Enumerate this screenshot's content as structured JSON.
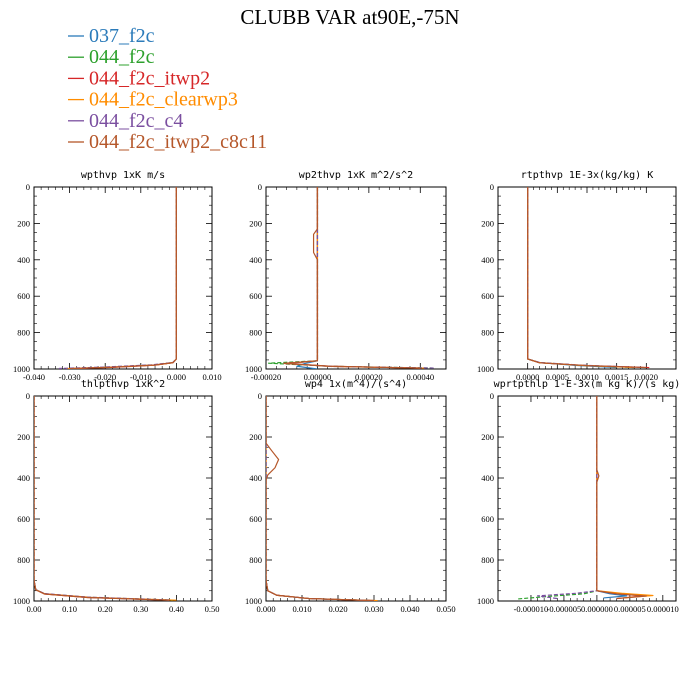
{
  "page": {
    "title": "CLUBB VAR at90E,-75N"
  },
  "legend": [
    {
      "label": "037_f2c",
      "color": "#2b7bba"
    },
    {
      "label": "044_f2c",
      "color": "#2ca02c"
    },
    {
      "label": "044_f2c_itwp2",
      "color": "#d62728"
    },
    {
      "label": "044_f2c_clearwp3",
      "color": "#ff8c00"
    },
    {
      "label": "044_f2c_c4",
      "color": "#7b4fa0"
    },
    {
      "label": "044_f2c_itwp2_c8c11",
      "color": "#b5572a"
    }
  ],
  "chart_data": [
    {
      "type": "line",
      "title": "wpthvp   1xK m/s",
      "xlim": [
        -0.04,
        0.01
      ],
      "ylim": [
        0,
        1000
      ],
      "y_inverted": true,
      "xticks": [
        -0.04,
        -0.03,
        -0.02,
        -0.01,
        0.0,
        0.01
      ],
      "xtick_labels": [
        "-0.040",
        "-0.030",
        "-0.020",
        "-0.010",
        "0.000",
        "0.010"
      ],
      "yticks": [
        0,
        200,
        400,
        600,
        800,
        1000
      ],
      "ytick_labels": [
        "0",
        "200",
        "400",
        "600",
        "800",
        "1000"
      ],
      "series": [
        {
          "name": "037_f2c",
          "color": "#2b7bba",
          "dashed": false,
          "x": [
            0,
            0,
            0,
            -0.001,
            -0.006,
            -0.018,
            -0.03
          ],
          "y": [
            0,
            900,
            945,
            965,
            978,
            990,
            998
          ]
        },
        {
          "name": "044_f2c",
          "color": "#2ca02c",
          "dashed": true,
          "x": [
            0,
            0,
            0,
            -0.001,
            -0.006,
            -0.018,
            -0.031
          ],
          "y": [
            0,
            900,
            945,
            965,
            978,
            990,
            998
          ]
        },
        {
          "name": "044_f2c_itwp2",
          "color": "#d62728",
          "dashed": false,
          "x": [
            0,
            0,
            0,
            -0.001,
            -0.006,
            -0.018,
            -0.03
          ],
          "y": [
            0,
            900,
            945,
            966,
            979,
            991,
            998
          ]
        },
        {
          "name": "044_f2c_clearwp3",
          "color": "#ff8c00",
          "dashed": false,
          "x": [
            0,
            0,
            0,
            -0.001,
            -0.006,
            -0.019,
            -0.031
          ],
          "y": [
            0,
            900,
            945,
            965,
            978,
            990,
            998
          ]
        },
        {
          "name": "044_f2c_c4",
          "color": "#7b4fa0",
          "dashed": true,
          "x": [
            0,
            0,
            0,
            -0.001,
            -0.007,
            -0.02,
            -0.033
          ],
          "y": [
            0,
            900,
            945,
            964,
            977,
            989,
            997
          ]
        },
        {
          "name": "044_f2c_itwp2_c8c11",
          "color": "#b5572a",
          "dashed": false,
          "x": [
            0,
            0,
            0,
            -0.001,
            -0.006,
            -0.018,
            -0.03
          ],
          "y": [
            0,
            900,
            945,
            965,
            978,
            990,
            998
          ]
        }
      ]
    },
    {
      "type": "line",
      "title": "wp2thvp   1xK m^2/s^2",
      "xlim": [
        -0.0002,
        0.0005
      ],
      "ylim": [
        0,
        1000
      ],
      "y_inverted": true,
      "xticks": [
        -0.0002,
        0,
        0.0002,
        0.0004
      ],
      "xtick_labels": [
        "-0.00020",
        "0.00000",
        "0.00020",
        "0.00040"
      ],
      "yticks": [
        0,
        200,
        400,
        600,
        800,
        1000
      ],
      "ytick_labels": [
        "0",
        "200",
        "400",
        "600",
        "800",
        "1000"
      ],
      "series": [
        {
          "name": "037_f2c",
          "color": "#2b7bba",
          "dashed": false,
          "x": [
            0,
            0,
            0,
            -5e-05,
            -8e-05,
            0
          ],
          "y": [
            0,
            900,
            955,
            970,
            985,
            1000
          ]
        },
        {
          "name": "044_f2c",
          "color": "#2ca02c",
          "dashed": true,
          "x": [
            0,
            0,
            0,
            -0.00019,
            5e-05,
            0.00045
          ],
          "y": [
            0,
            900,
            955,
            968,
            985,
            995
          ]
        },
        {
          "name": "044_f2c_itwp2",
          "color": "#d62728",
          "dashed": false,
          "x": [
            0,
            0,
            0,
            -0.00013,
            5e-05,
            0.0004
          ],
          "y": [
            0,
            900,
            955,
            969,
            985,
            995
          ]
        },
        {
          "name": "044_f2c_clearwp3",
          "color": "#ff8c00",
          "dashed": false,
          "x": [
            0,
            0,
            0,
            -0.00012,
            5e-05,
            0.00042
          ],
          "y": [
            0,
            900,
            955,
            970,
            986,
            995
          ]
        },
        {
          "name": "044_f2c_c4",
          "color": "#7b4fa0",
          "dashed": true,
          "x": [
            0,
            0,
            0,
            -0.00012,
            5e-05,
            0.00046
          ],
          "y": [
            0,
            900,
            955,
            970,
            986,
            995
          ]
        },
        {
          "name": "044_f2c_itwp2_c8c11",
          "color": "#b5572a",
          "dashed": false,
          "x": [
            0,
            0,
            -1.5e-05,
            -1.5e-05,
            0,
            0,
            0,
            -0.00013,
            5e-05,
            0.0004
          ],
          "y": [
            0,
            230,
            260,
            360,
            400,
            430,
            955,
            969,
            985,
            995
          ]
        }
      ]
    },
    {
      "type": "line",
      "title": "rtpthvp   1E-3x(kg/kg) K",
      "xlim": [
        -0.0005,
        0.0025
      ],
      "ylim": [
        0,
        1000
      ],
      "y_inverted": true,
      "xticks": [
        0,
        0.0005,
        0.001,
        0.0015,
        0.002
      ],
      "xtick_labels": [
        "0.0000",
        "0.0005",
        "0.0010",
        "0.0015",
        "0.0020"
      ],
      "yticks": [
        0,
        200,
        400,
        600,
        800,
        1000
      ],
      "ytick_labels": [
        "0",
        "200",
        "400",
        "600",
        "800",
        "1000"
      ],
      "series": [
        {
          "name": "037_f2c",
          "color": "#2b7bba",
          "dashed": false,
          "x": [
            0,
            0,
            0,
            0.0002,
            0.0008,
            0.0015
          ],
          "y": [
            0,
            900,
            945,
            965,
            980,
            992
          ]
        },
        {
          "name": "044_f2c",
          "color": "#2ca02c",
          "dashed": true,
          "x": [
            0,
            0,
            0,
            0.0002,
            0.0009,
            0.0018
          ],
          "y": [
            0,
            900,
            945,
            965,
            980,
            992
          ]
        },
        {
          "name": "044_f2c_itwp2",
          "color": "#d62728",
          "dashed": false,
          "x": [
            0,
            0,
            0,
            0.0002,
            0.001,
            0.00205
          ],
          "y": [
            0,
            900,
            945,
            966,
            981,
            992
          ]
        },
        {
          "name": "044_f2c_clearwp3",
          "color": "#ff8c00",
          "dashed": false,
          "x": [
            0,
            0,
            0,
            0.0002,
            0.0009,
            0.0018
          ],
          "y": [
            0,
            900,
            945,
            965,
            980,
            992
          ]
        },
        {
          "name": "044_f2c_c4",
          "color": "#7b4fa0",
          "dashed": true,
          "x": [
            0,
            0,
            0,
            0.0002,
            0.0009,
            0.0019
          ],
          "y": [
            0,
            900,
            945,
            964,
            979,
            991
          ]
        },
        {
          "name": "044_f2c_itwp2_c8c11",
          "color": "#b5572a",
          "dashed": false,
          "x": [
            0,
            0,
            0,
            0.0002,
            0.001,
            0.002
          ],
          "y": [
            0,
            900,
            945,
            966,
            981,
            992
          ]
        }
      ]
    },
    {
      "type": "line",
      "title": "thlpthvp   1xK^2",
      "xlim": [
        0,
        0.5
      ],
      "ylim": [
        0,
        1000
      ],
      "y_inverted": true,
      "xticks": [
        0,
        0.1,
        0.2,
        0.3,
        0.4,
        0.5
      ],
      "xtick_labels": [
        "0.00",
        "0.10",
        "0.20",
        "0.30",
        "0.40",
        "0.50"
      ],
      "yticks": [
        0,
        200,
        400,
        600,
        800,
        1000
      ],
      "ytick_labels": [
        "0",
        "200",
        "400",
        "600",
        "800",
        "1000"
      ],
      "series": [
        {
          "name": "037_f2c",
          "color": "#2b7bba",
          "dashed": false,
          "x": [
            0,
            0,
            0.005,
            0.03,
            0.15,
            0.38
          ],
          "y": [
            0,
            900,
            945,
            965,
            982,
            996
          ]
        },
        {
          "name": "044_f2c",
          "color": "#2ca02c",
          "dashed": true,
          "x": [
            0,
            0,
            0.005,
            0.03,
            0.15,
            0.39
          ],
          "y": [
            0,
            900,
            945,
            965,
            982,
            996
          ]
        },
        {
          "name": "044_f2c_itwp2",
          "color": "#d62728",
          "dashed": false,
          "x": [
            0,
            0,
            0.005,
            0.03,
            0.15,
            0.38
          ],
          "y": [
            0,
            900,
            945,
            966,
            983,
            996
          ]
        },
        {
          "name": "044_f2c_clearwp3",
          "color": "#ff8c00",
          "dashed": false,
          "x": [
            0,
            0,
            0.005,
            0.03,
            0.16,
            0.4
          ],
          "y": [
            0,
            900,
            945,
            965,
            982,
            996
          ]
        },
        {
          "name": "044_f2c_c4",
          "color": "#7b4fa0",
          "dashed": true,
          "x": [
            0,
            0,
            0.005,
            0.03,
            0.15,
            0.38
          ],
          "y": [
            0,
            900,
            945,
            964,
            981,
            995
          ]
        },
        {
          "name": "044_f2c_itwp2_c8c11",
          "color": "#b5572a",
          "dashed": false,
          "x": [
            0,
            0,
            0.005,
            0.03,
            0.15,
            0.38
          ],
          "y": [
            0,
            900,
            945,
            966,
            983,
            996
          ]
        }
      ]
    },
    {
      "type": "line",
      "title": "wp4   1x(m^4)/(s^4)",
      "xlim": [
        0,
        0.05
      ],
      "ylim": [
        0,
        1000
      ],
      "y_inverted": true,
      "xticks": [
        0,
        0.01,
        0.02,
        0.03,
        0.04,
        0.05
      ],
      "xtick_labels": [
        "0.000",
        "0.010",
        "0.020",
        "0.030",
        "0.040",
        "0.050"
      ],
      "yticks": [
        0,
        200,
        400,
        600,
        800,
        1000
      ],
      "ytick_labels": [
        "0",
        "200",
        "400",
        "600",
        "800",
        "1000"
      ],
      "series": [
        {
          "name": "037_f2c",
          "color": "#2b7bba",
          "dashed": false,
          "x": [
            0,
            0,
            0.0005,
            0.003,
            0.012,
            0.03
          ],
          "y": [
            0,
            900,
            950,
            972,
            988,
            998
          ]
        },
        {
          "name": "044_f2c",
          "color": "#2ca02c",
          "dashed": true,
          "x": [
            0,
            0,
            0.0005,
            0.003,
            0.012,
            0.03
          ],
          "y": [
            0,
            900,
            950,
            972,
            988,
            998
          ]
        },
        {
          "name": "044_f2c_itwp2",
          "color": "#d62728",
          "dashed": false,
          "x": [
            0,
            0,
            0.0005,
            0.003,
            0.012,
            0.03
          ],
          "y": [
            0,
            900,
            950,
            972,
            988,
            998
          ]
        },
        {
          "name": "044_f2c_clearwp3",
          "color": "#ff8c00",
          "dashed": false,
          "x": [
            0,
            0,
            0.0005,
            0.003,
            0.012,
            0.031
          ],
          "y": [
            0,
            900,
            950,
            972,
            988,
            998
          ]
        },
        {
          "name": "044_f2c_c4",
          "color": "#7b4fa0",
          "dashed": true,
          "x": [
            0,
            0,
            0.0005,
            0.003,
            0.012,
            0.03
          ],
          "y": [
            0,
            900,
            950,
            972,
            988,
            998
          ]
        },
        {
          "name": "044_f2c_itwp2_c8c11",
          "color": "#b5572a",
          "dashed": false,
          "x": [
            0,
            0,
            0.0015,
            0.0035,
            0.0025,
            0.0005,
            0,
            0,
            0.0005,
            0.003,
            0.012,
            0.03
          ],
          "y": [
            0,
            230,
            265,
            310,
            350,
            385,
            410,
            900,
            950,
            972,
            988,
            998
          ]
        }
      ]
    },
    {
      "type": "line",
      "title": "wprtpthlp   1-E-3x(m kg K)/(s kg)",
      "xlim": [
        -1.5e-05,
        1.2e-05
      ],
      "ylim": [
        0,
        1000
      ],
      "y_inverted": true,
      "xticks": [
        -1e-05,
        -5e-06,
        0,
        5e-06,
        1e-05
      ],
      "xtick_labels": [
        "-0.000010",
        "-0.000005",
        "0.000000",
        "0.000005",
        "0.000010"
      ],
      "yticks": [
        0,
        200,
        400,
        600,
        800,
        1000
      ],
      "ytick_labels": [
        "0",
        "200",
        "400",
        "600",
        "800",
        "1000"
      ],
      "series": [
        {
          "name": "037_f2c",
          "color": "#2b7bba",
          "dashed": false,
          "x": [
            0,
            0,
            0,
            2e-06,
            4.5e-06,
            1e-06
          ],
          "y": [
            0,
            900,
            950,
            965,
            975,
            985
          ]
        },
        {
          "name": "044_f2c",
          "color": "#2ca02c",
          "dashed": true,
          "x": [
            0,
            0,
            0,
            -2e-06,
            -7.5e-06,
            -1.2e-05
          ],
          "y": [
            0,
            900,
            950,
            965,
            978,
            990
          ]
        },
        {
          "name": "044_f2c_itwp2",
          "color": "#d62728",
          "dashed": false,
          "x": [
            0,
            0,
            0,
            3e-06,
            7e-06,
            3e-06
          ],
          "y": [
            0,
            900,
            950,
            965,
            975,
            988
          ]
        },
        {
          "name": "044_f2c_clearwp3",
          "color": "#ff8c00",
          "dashed": false,
          "x": [
            0,
            0,
            0,
            4e-06,
            8.5e-06,
            4e-06
          ],
          "y": [
            0,
            900,
            950,
            963,
            973,
            985
          ]
        },
        {
          "name": "044_f2c_c4",
          "color": "#7b4fa0",
          "dashed": true,
          "x": [
            0,
            0,
            0,
            -3e-06,
            -9e-06,
            -6e-06
          ],
          "y": [
            0,
            900,
            950,
            962,
            975,
            988
          ]
        },
        {
          "name": "044_f2c_itwp2_c8c11",
          "color": "#b5572a",
          "dashed": false,
          "x": [
            0,
            0,
            3e-07,
            0,
            0,
            0,
            3e-06,
            7.5e-06,
            3e-06
          ],
          "y": [
            0,
            360,
            390,
            420,
            900,
            950,
            965,
            976,
            988
          ]
        }
      ]
    }
  ]
}
